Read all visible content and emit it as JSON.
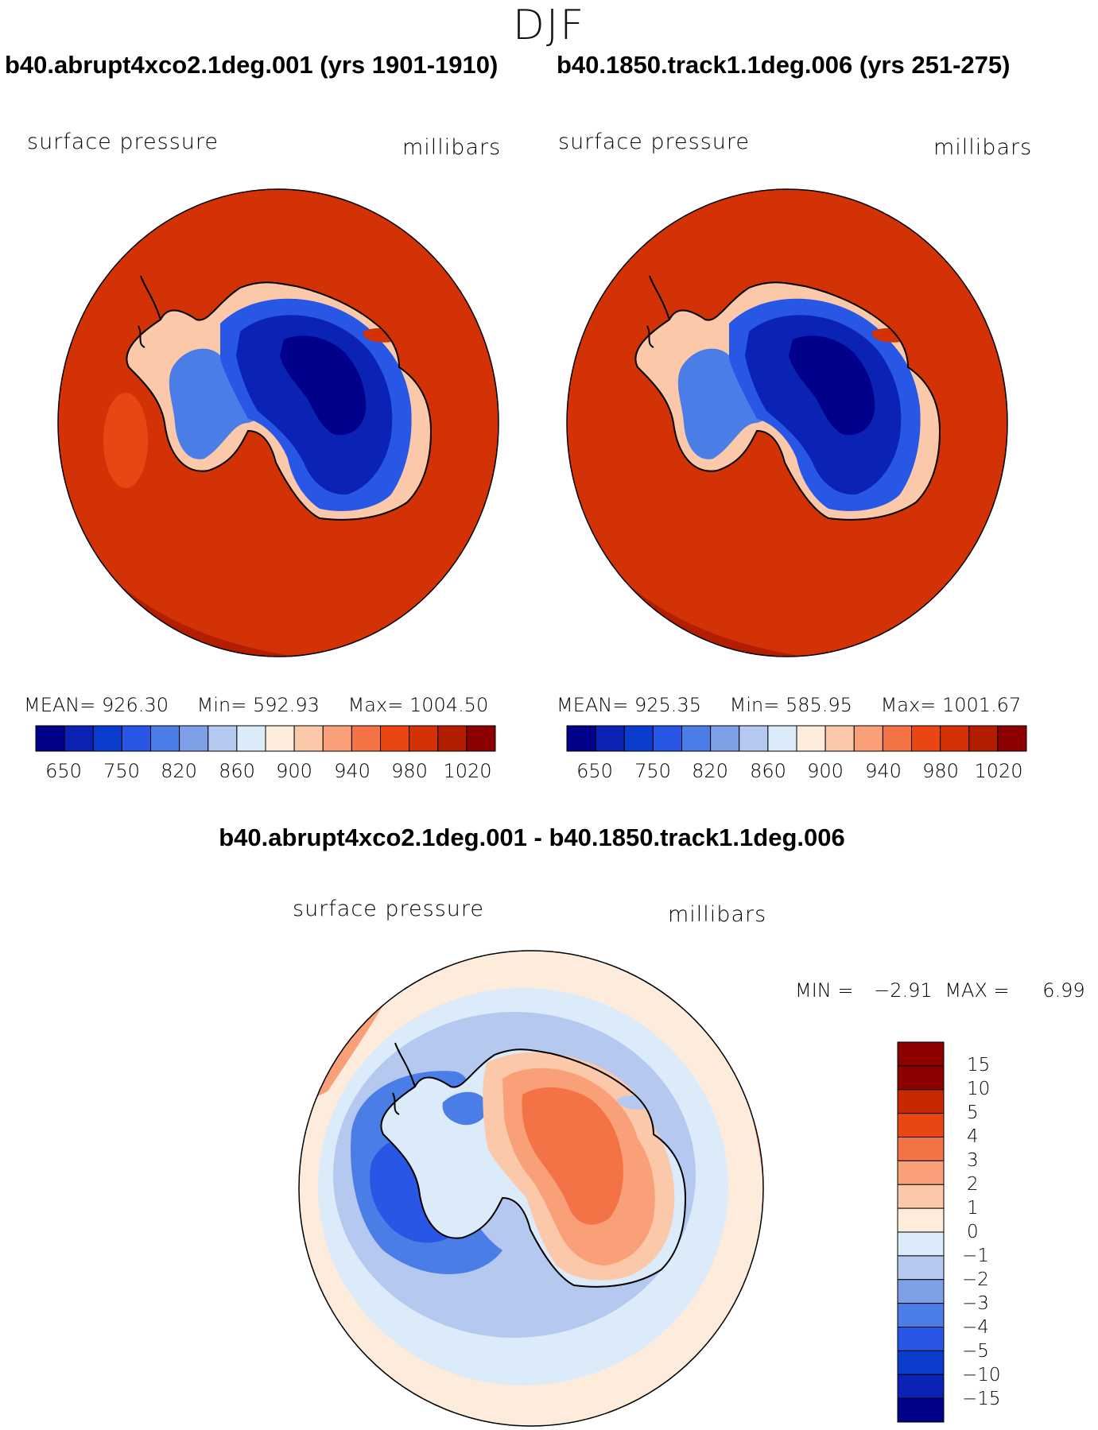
{
  "season": "DJF",
  "colors": {
    "cmap_abs": [
      "#00008b",
      "#0a23b4",
      "#0a3ccd",
      "#2857e6",
      "#4b7de6",
      "#7da0e6",
      "#b4c8f0",
      "#dcebfa",
      "#fdebdc",
      "#fcc8aa",
      "#f9a078",
      "#f47346",
      "#ea4614",
      "#d23205",
      "#b41e00",
      "#8c0000"
    ],
    "cmap_diff": [
      "#00008b",
      "#0a23b4",
      "#0a3ccd",
      "#2857e6",
      "#4b7de6",
      "#7da0e6",
      "#b4c8f0",
      "#dcebfa",
      "#fdebdc",
      "#fcc8aa",
      "#f9a078",
      "#f47346",
      "#ea4614",
      "#c82800",
      "#8c0000"
    ],
    "coast": "#000000"
  },
  "chart_data": [
    {
      "type": "heatmap",
      "title": "b40.abrupt4xco2.1deg.001 (yrs 1901-1910)",
      "variable": "surface pressure",
      "units": "millibars",
      "projection": "south polar stereographic",
      "stats": {
        "mean_label": "MEAN=",
        "mean": "926.30",
        "min_label": "Min=",
        "min": "592.93",
        "max_label": "Max=",
        "max": "1004.50"
      },
      "colorbar_ticks": [
        "650",
        "750",
        "820",
        "860",
        "900",
        "940",
        "980",
        "1020"
      ],
      "contour_levels": [
        650,
        700,
        750,
        800,
        820,
        840,
        860,
        880,
        900,
        920,
        940,
        960,
        980,
        1000,
        1020
      ],
      "regions": {
        "ocean": 990,
        "plateau": 600,
        "interior": 660,
        "east_margin": 760,
        "west_margin": 800,
        "coast": 900,
        "pacific_low": 975,
        "outer_ring": 1005
      }
    },
    {
      "type": "heatmap",
      "title": "b40.1850.track1.1deg.006 (yrs 251-275)",
      "variable": "surface pressure",
      "units": "millibars",
      "projection": "south polar stereographic",
      "stats": {
        "mean_label": "MEAN=",
        "mean": "925.35",
        "min_label": "Min=",
        "min": "585.95",
        "max_label": "Max=",
        "max": "1001.67"
      },
      "colorbar_ticks": [
        "650",
        "750",
        "820",
        "860",
        "900",
        "940",
        "980",
        "1020"
      ],
      "contour_levels": [
        650,
        700,
        750,
        800,
        820,
        840,
        860,
        880,
        900,
        920,
        940,
        960,
        980,
        1000,
        1020
      ],
      "regions": {
        "ocean": 990,
        "plateau": 590,
        "interior": 660,
        "east_margin": 760,
        "west_margin": 800,
        "coast": 900,
        "outer_ring": 1002
      }
    },
    {
      "type": "heatmap",
      "title": "b40.abrupt4xco2.1deg.001 - b40.1850.track1.1deg.006",
      "variable": "surface pressure",
      "units": "millibars",
      "projection": "south polar stereographic",
      "stats": {
        "min_label": "MIN =",
        "min": "−2.91",
        "max_label": "MAX =",
        "max": "6.99"
      },
      "colorbar_levels": [
        "15",
        "10",
        "5",
        "4",
        "3",
        "2",
        "1",
        "0",
        "−1",
        "−2",
        "−3",
        "−4",
        "−5",
        "−10",
        "−15"
      ],
      "regions": {
        "east_antarctica": 4.5,
        "east_inner": 3.5,
        "east_edge": 2.5,
        "ross_region": 0.5,
        "west_ocean_sector": -2.5,
        "west_ocean_core": -3.5,
        "ring_zero_minus": -0.5,
        "ring_plus1": 0.5,
        "ring_plus2": 1.5,
        "outer_pacific": 3
      }
    }
  ]
}
